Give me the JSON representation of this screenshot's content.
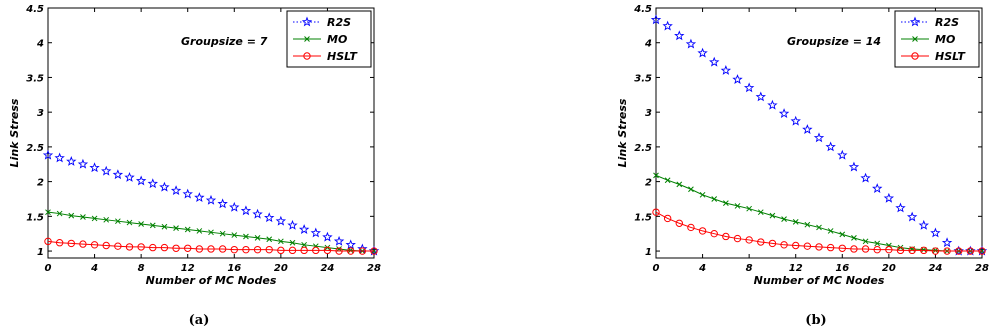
{
  "chart_data": [
    {
      "type": "line",
      "caption": "(a)",
      "annotation": "Groupsize = 7",
      "xlabel": "Number of MC Nodes",
      "ylabel": "Link Stress",
      "xlim": [
        0,
        28
      ],
      "ylim": [
        0.9,
        4.5
      ],
      "xticks": [
        "0",
        "4",
        "8",
        "12",
        "16",
        "20",
        "24",
        "28"
      ],
      "yticks": [
        "1",
        "1.5",
        "2",
        "2.5",
        "3",
        "3.5",
        "4",
        "4.5"
      ],
      "grid": false,
      "legend_position": "top-right",
      "x": [
        0,
        1,
        2,
        3,
        4,
        5,
        6,
        7,
        8,
        9,
        10,
        11,
        12,
        13,
        14,
        15,
        16,
        17,
        18,
        19,
        20,
        21,
        22,
        23,
        24,
        25,
        26,
        27,
        28
      ],
      "series": [
        {
          "name": "R2S",
          "color": "#0000ff",
          "marker": "star",
          "line": "dotted",
          "values": [
            2.38,
            2.34,
            2.29,
            2.25,
            2.2,
            2.15,
            2.1,
            2.06,
            2.01,
            1.97,
            1.92,
            1.87,
            1.82,
            1.77,
            1.73,
            1.68,
            1.63,
            1.58,
            1.53,
            1.48,
            1.43,
            1.37,
            1.31,
            1.26,
            1.2,
            1.14,
            1.09,
            1.03,
            1.0
          ]
        },
        {
          "name": "MO",
          "color": "#008000",
          "marker": "x",
          "line": "solid",
          "values": [
            1.56,
            1.54,
            1.51,
            1.49,
            1.47,
            1.45,
            1.43,
            1.41,
            1.39,
            1.37,
            1.35,
            1.33,
            1.31,
            1.29,
            1.27,
            1.25,
            1.23,
            1.21,
            1.19,
            1.17,
            1.14,
            1.12,
            1.09,
            1.07,
            1.05,
            1.03,
            1.01,
            1.0,
            1.0
          ]
        },
        {
          "name": "HSLT",
          "color": "#ff0000",
          "marker": "circle",
          "line": "solid",
          "values": [
            1.14,
            1.12,
            1.11,
            1.1,
            1.09,
            1.08,
            1.07,
            1.06,
            1.06,
            1.05,
            1.05,
            1.04,
            1.04,
            1.03,
            1.03,
            1.03,
            1.02,
            1.02,
            1.02,
            1.02,
            1.01,
            1.01,
            1.01,
            1.01,
            1.01,
            1.0,
            1.0,
            1.0,
            1.0
          ]
        }
      ]
    },
    {
      "type": "line",
      "caption": "(b)",
      "annotation": "Groupsize = 14",
      "xlabel": "Number of MC Nodes",
      "ylabel": "Link Stress",
      "xlim": [
        0,
        28
      ],
      "ylim": [
        0.9,
        4.5
      ],
      "xticks": [
        "0",
        "4",
        "8",
        "12",
        "16",
        "20",
        "24",
        "28"
      ],
      "yticks": [
        "1",
        "1.5",
        "2",
        "2.5",
        "3",
        "3.5",
        "4",
        "4.5"
      ],
      "grid": false,
      "legend_position": "top-right",
      "x": [
        0,
        1,
        2,
        3,
        4,
        5,
        6,
        7,
        8,
        9,
        10,
        11,
        12,
        13,
        14,
        15,
        16,
        17,
        18,
        19,
        20,
        21,
        22,
        23,
        24,
        25,
        26,
        27,
        28
      ],
      "series": [
        {
          "name": "R2S",
          "color": "#0000ff",
          "marker": "star",
          "line": "dotted",
          "values": [
            4.33,
            4.24,
            4.1,
            3.98,
            3.85,
            3.72,
            3.6,
            3.47,
            3.35,
            3.22,
            3.1,
            2.98,
            2.87,
            2.75,
            2.63,
            2.5,
            2.38,
            2.21,
            2.05,
            1.9,
            1.76,
            1.62,
            1.49,
            1.37,
            1.26,
            1.12,
            1.0,
            1.0,
            1.0
          ]
        },
        {
          "name": "MO",
          "color": "#008000",
          "marker": "x",
          "line": "solid",
          "values": [
            2.09,
            2.02,
            1.96,
            1.89,
            1.81,
            1.75,
            1.69,
            1.65,
            1.61,
            1.56,
            1.51,
            1.46,
            1.42,
            1.38,
            1.34,
            1.29,
            1.24,
            1.19,
            1.14,
            1.11,
            1.08,
            1.05,
            1.03,
            1.02,
            1.01,
            1.0,
            1.0,
            1.0,
            1.0
          ]
        },
        {
          "name": "HSLT",
          "color": "#ff0000",
          "marker": "circle",
          "line": "solid",
          "values": [
            1.56,
            1.47,
            1.4,
            1.34,
            1.29,
            1.25,
            1.21,
            1.18,
            1.16,
            1.13,
            1.11,
            1.09,
            1.08,
            1.07,
            1.06,
            1.05,
            1.04,
            1.03,
            1.03,
            1.02,
            1.02,
            1.01,
            1.01,
            1.01,
            1.0,
            1.0,
            1.0,
            1.0,
            1.0
          ]
        }
      ]
    }
  ]
}
